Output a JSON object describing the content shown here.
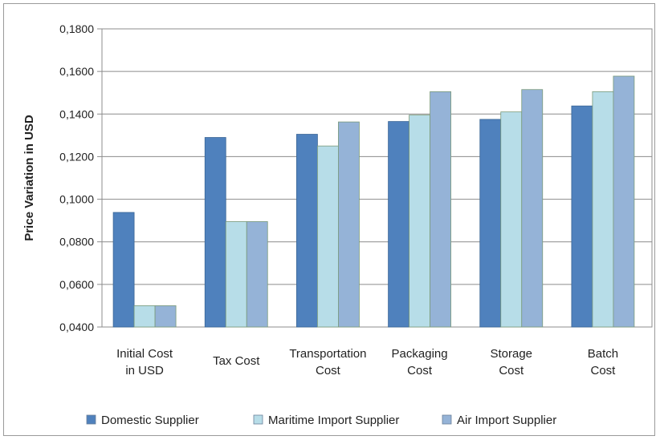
{
  "chart_data": {
    "type": "bar",
    "ylabel": "Price Variation in USD",
    "ylim": [
      0.04,
      0.18
    ],
    "yticks": [
      0.04,
      0.06,
      0.08,
      0.1,
      0.12,
      0.14,
      0.16,
      0.18
    ],
    "ytick_labels": [
      "0,0400",
      "0,0600",
      "0,0800",
      "0,1000",
      "0,1200",
      "0,1400",
      "0,1600",
      "0,1800"
    ],
    "categories": [
      [
        "Initial Cost",
        "in USD"
      ],
      [
        "Tax Cost"
      ],
      [
        "Transportation",
        "Cost"
      ],
      [
        "Packaging",
        "Cost"
      ],
      [
        "Storage",
        "Cost"
      ],
      [
        "Batch",
        "Cost"
      ]
    ],
    "series": [
      {
        "name": "Domestic Supplier",
        "color": "#4f81bd",
        "values": [
          0.0938,
          0.129,
          0.1305,
          0.1365,
          0.1375,
          0.1438
        ]
      },
      {
        "name": "Maritime Import Supplier",
        "color": "#b7dde8",
        "values": [
          0.05,
          0.0895,
          0.125,
          0.1395,
          0.141,
          0.1505
        ]
      },
      {
        "name": "Air Import Supplier",
        "color": "#95b3d7",
        "values": [
          0.05,
          0.0895,
          0.1363,
          0.1505,
          0.1515,
          0.1578
        ]
      }
    ],
    "grid": "horizontal",
    "legend_position": "bottom"
  }
}
